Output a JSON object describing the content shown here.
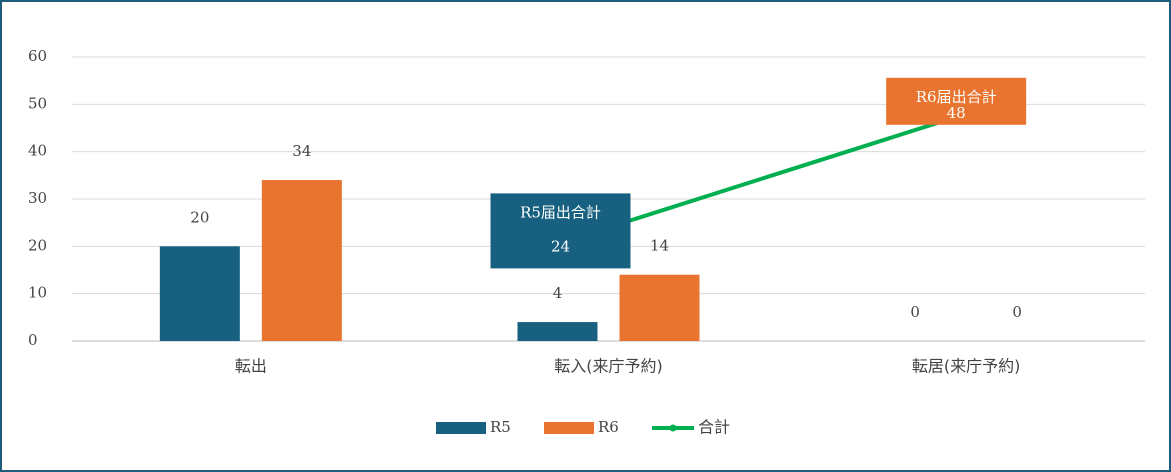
{
  "chart_data": {
    "type": "bar",
    "categories": [
      "転出",
      "転入(来庁予約)",
      "転居(来庁予約)"
    ],
    "series": [
      {
        "name": "R5",
        "color": "#17607f",
        "values": [
          20,
          4,
          0
        ]
      },
      {
        "name": "R6",
        "color": "#e8742f",
        "values": [
          34,
          14,
          0
        ]
      },
      {
        "name": "合計",
        "type": "line",
        "color": "#00b050",
        "values": [
          null,
          24,
          48
        ]
      }
    ],
    "line_labels": [
      null,
      "R5届出合計",
      "R6届出合計"
    ],
    "ylim": [
      0,
      60
    ],
    "yticks": [
      0,
      10,
      20,
      30,
      40,
      50,
      60
    ],
    "grid": true,
    "legend": "bottom"
  }
}
